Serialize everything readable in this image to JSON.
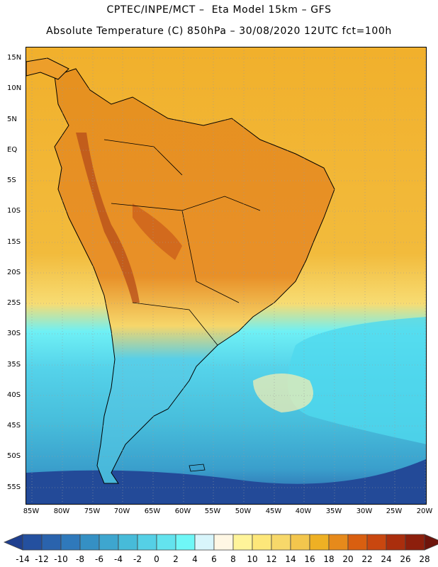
{
  "title_line1": "CPTEC/INPE/MCT –  Eta Model 15km – GFS",
  "title_line2": "Absolute Temperature (C) 850hPa – 30/08/2020 12UTC fct=100h",
  "lat_labels": [
    "15N",
    "10N",
    "5N",
    "EQ",
    "5S",
    "10S",
    "15S",
    "20S",
    "25S",
    "30S",
    "35S",
    "40S",
    "45S",
    "50S",
    "55S"
  ],
  "lon_labels": [
    "85W",
    "80W",
    "75W",
    "70W",
    "65W",
    "60W",
    "55W",
    "50W",
    "45W",
    "40W",
    "35W",
    "30W",
    "25W",
    "20W"
  ],
  "colorbar": {
    "labels": [
      "-14",
      "-12",
      "-10",
      "-8",
      "-6",
      "-4",
      "-2",
      "0",
      "2",
      "4",
      "6",
      "8",
      "10",
      "12",
      "14",
      "16",
      "18",
      "20",
      "22",
      "24",
      "26",
      "28"
    ],
    "colors": [
      "#1f3f8f",
      "#24509f",
      "#2a63ad",
      "#2f79bb",
      "#3590c4",
      "#3ea6cf",
      "#47bbd9",
      "#55d0e6",
      "#63e3ee",
      "#6ff7f7",
      "#d8f5fb",
      "#fff7e4",
      "#fff49a",
      "#fde77a",
      "#f7d86a",
      "#f3c64d",
      "#eeb024",
      "#e68a1b",
      "#d95f10",
      "#c9470f",
      "#aa2e0d",
      "#8d1f0c",
      "#6e140b"
    ]
  }
}
